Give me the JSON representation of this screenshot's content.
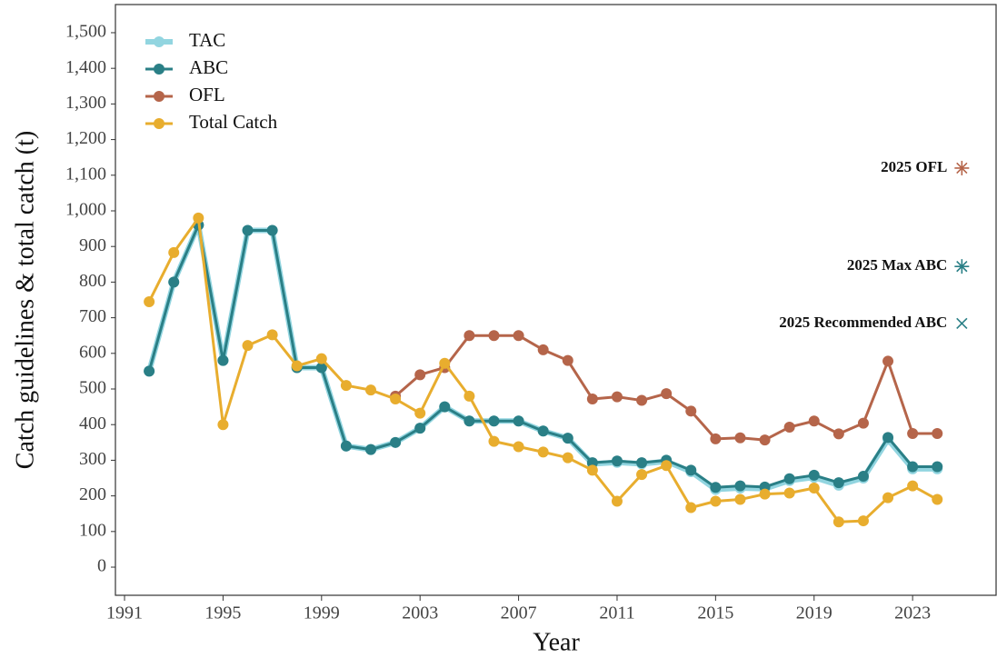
{
  "chart_data": {
    "type": "line",
    "xlabel": "Year",
    "ylabel": "Catch guidelines & total catch (t)",
    "x": [
      1992,
      1993,
      1994,
      1995,
      1996,
      1997,
      1998,
      1999,
      2000,
      2001,
      2002,
      2003,
      2004,
      2005,
      2006,
      2007,
      2008,
      2009,
      2010,
      2011,
      2012,
      2013,
      2014,
      2015,
      2016,
      2017,
      2018,
      2019,
      2020,
      2021,
      2022,
      2023,
      2024
    ],
    "series": [
      {
        "name": "TAC",
        "color": "#92d5e0",
        "width": 6,
        "values": [
          550,
          800,
          960,
          580,
          945,
          945,
          560,
          560,
          340,
          330,
          350,
          390,
          450,
          410,
          410,
          410,
          382,
          362,
          290,
          294,
          290,
          297,
          268,
          218,
          222,
          220,
          243,
          252,
          230,
          250,
          358,
          276,
          276
        ]
      },
      {
        "name": "ABC",
        "color": "#2a7f86",
        "width": 3,
        "values": [
          550,
          800,
          960,
          580,
          945,
          945,
          560,
          560,
          340,
          330,
          350,
          390,
          450,
          410,
          410,
          410,
          382,
          362,
          293,
          298,
          293,
          300,
          272,
          224,
          228,
          225,
          248,
          258,
          237,
          255,
          364,
          282,
          282
        ]
      },
      {
        "name": "OFL",
        "color": "#b5654a",
        "width": 3,
        "values": [
          null,
          null,
          null,
          null,
          null,
          null,
          null,
          null,
          null,
          null,
          480,
          540,
          560,
          650,
          650,
          650,
          610,
          580,
          472,
          478,
          468,
          487,
          438,
          360,
          363,
          357,
          393,
          410,
          374,
          404,
          578,
          375,
          375
        ]
      },
      {
        "name": "Total Catch",
        "color": "#e8ad2e",
        "width": 3,
        "values": [
          745,
          883,
          980,
          400,
          622,
          652,
          565,
          585,
          510,
          497,
          472,
          432,
          572,
          480,
          353,
          338,
          323,
          307,
          272,
          185,
          260,
          285,
          167,
          185,
          190,
          205,
          208,
          222,
          127,
          130,
          195,
          228,
          190
        ]
      }
    ],
    "annotations": [
      {
        "label": "2025 OFL",
        "x": 2025,
        "y": 1120,
        "color": "#b5654a",
        "marker": "asterisk"
      },
      {
        "label": "2025 Max ABC",
        "x": 2025,
        "y": 844,
        "color": "#2a7f86",
        "marker": "asterisk"
      },
      {
        "label": "2025 Recommended ABC",
        "x": 2025,
        "y": 684,
        "color": "#2a7f86",
        "marker": "cross"
      }
    ],
    "xlim": [
      1990.63,
      2026.39
    ],
    "ylim": [
      -79,
      1579
    ],
    "xticks": [
      1991,
      1995,
      1999,
      2003,
      2007,
      2011,
      2015,
      2019,
      2023
    ],
    "yticks": [
      0,
      100,
      200,
      300,
      400,
      500,
      600,
      700,
      800,
      900,
      {
        "value": 1000,
        "label": "1,000"
      },
      {
        "value": 1100,
        "label": "1,100"
      },
      {
        "value": 1200,
        "label": "1,200"
      },
      {
        "value": 1300,
        "label": "1,300"
      },
      {
        "value": 1400,
        "label": "1,400"
      },
      {
        "value": 1500,
        "label": "1,500"
      }
    ],
    "legend": "top-left",
    "grid": false
  }
}
